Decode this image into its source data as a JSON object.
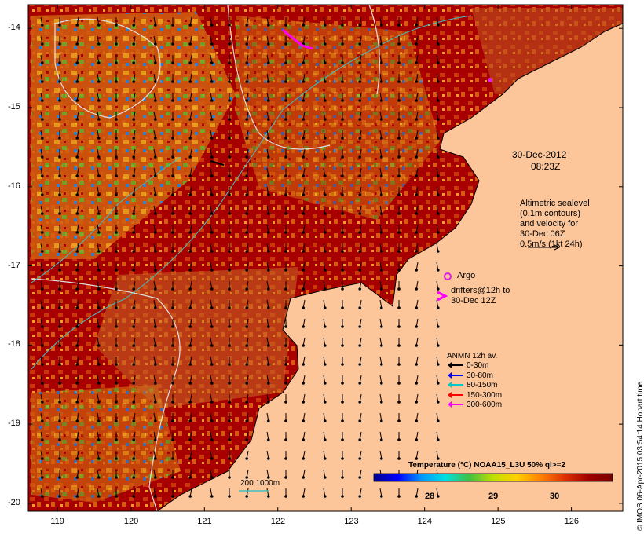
{
  "map": {
    "lon_ticks": [
      "119",
      "120",
      "121",
      "122",
      "123",
      "124",
      "125",
      "126"
    ],
    "lat_ticks": [
      "-14",
      "-15",
      "-16",
      "-17",
      "-18",
      "-19",
      "-20"
    ],
    "lon_range": [
      118.6,
      126.7
    ],
    "lat_range": [
      -13.7,
      -20.1
    ],
    "colors": {
      "land": "#fcc59a",
      "sst_hot": "#a80000",
      "sst_warm": "#d05a10",
      "sst_mid": "#f0b020",
      "sst_green": "#40c040",
      "sst_cool": "#2090e8",
      "sst_cold": "#1010a0",
      "coast": "#000000",
      "contour": "#e0e0e0",
      "isobath": "#40c0c0",
      "argo": "#e020e0"
    }
  },
  "annotation": {
    "date": "30-Dec-2012",
    "time": "08:23Z",
    "sealevel_lines": [
      "Altimetric sealevel",
      "(0.1m contours)",
      "and velocity for",
      "30-Dec 06Z",
      "0.5m/s (1kt 24h)"
    ],
    "argo_label": "Argo",
    "drifters_lines": [
      "drifters@12h to",
      "30-Dec 12Z"
    ]
  },
  "anmn": {
    "title": "ANMN 12h av.",
    "items": [
      {
        "label": "0-30m",
        "color": "#000000"
      },
      {
        "label": "30-80m",
        "color": "#0000ff"
      },
      {
        "label": "80-150m",
        "color": "#00c8c8"
      },
      {
        "label": "150-300m",
        "color": "#ff0000"
      },
      {
        "label": "300-600m",
        "color": "#ff00ff"
      }
    ]
  },
  "colorbar": {
    "title": "Temperature (°C) NOAA15_L3U 50% ql>=2",
    "ticks": [
      "28",
      "29",
      "30"
    ],
    "stops": [
      "#00008c",
      "#0000ff",
      "#0096ff",
      "#00e0e0",
      "#40c040",
      "#c0e000",
      "#ffd000",
      "#ff8000",
      "#e03000",
      "#a00000",
      "#780000"
    ]
  },
  "isobath_label": "200  1000m",
  "credit": "© IMOS 06-Apr-2015 03:54:14 Hobart time"
}
